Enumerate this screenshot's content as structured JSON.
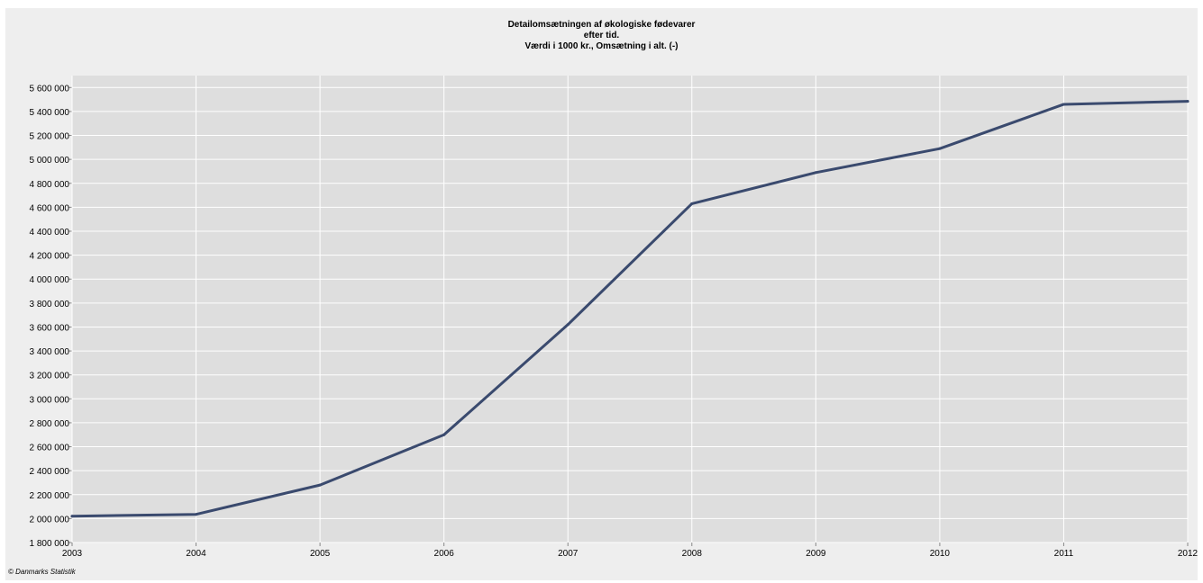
{
  "chart_data": {
    "type": "line",
    "title": "Detailomsætningen af økologiske fødevarer",
    "subtitle": "efter tid.",
    "subtitle2": "Værdi i 1000 kr., Omsætning i alt. (-)",
    "xlabel": "",
    "ylabel": "",
    "x": [
      2003,
      2004,
      2005,
      2006,
      2007,
      2008,
      2009,
      2010,
      2011,
      2012
    ],
    "values": [
      2020000,
      2035000,
      2280000,
      2700000,
      3620000,
      4630000,
      4890000,
      5090000,
      5460000,
      5485000
    ],
    "xlim": [
      2003,
      2012
    ],
    "ylim": [
      1800000,
      5700000
    ],
    "yticks": [
      1800000,
      2000000,
      2200000,
      2400000,
      2600000,
      2800000,
      3000000,
      3200000,
      3400000,
      3600000,
      3800000,
      4000000,
      4200000,
      4400000,
      4600000,
      4800000,
      5000000,
      5200000,
      5400000,
      5600000
    ],
    "ytick_labels": [
      "1 800 000",
      "2 000 000",
      "2 200 000",
      "2 400 000",
      "2 600 000",
      "2 800 000",
      "3 000 000",
      "3 200 000",
      "3 400 000",
      "3 600 000",
      "3 800 000",
      "4 000 000",
      "4 200 000",
      "4 400 000",
      "4 600 000",
      "4 800 000",
      "5 000 000",
      "5 200 000",
      "5 400 000",
      "5 600 000"
    ],
    "xtick_labels": [
      "2003",
      "2004",
      "2005",
      "2006",
      "2007",
      "2008",
      "2009",
      "2010",
      "2011",
      "2012"
    ],
    "grid": true,
    "legend": "none",
    "colors": {
      "line": "#3a4a6e",
      "plot_background": "#dedede",
      "grid": "#ffffff",
      "frame_background": "#eeeeee"
    }
  },
  "credit": "© Danmarks Statistik"
}
